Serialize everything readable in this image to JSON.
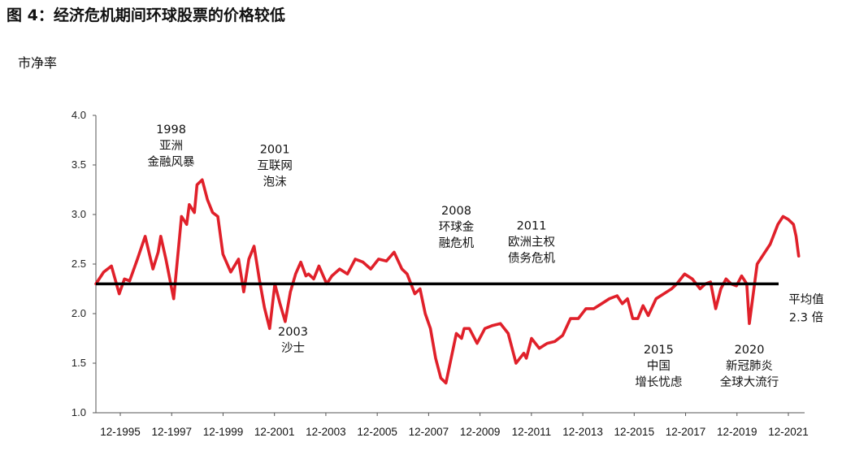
{
  "figure": {
    "title": "图 4：经济危机期间环球股票的价格较低",
    "unit_label": "市净率"
  },
  "colors": {
    "series": "#e0202a",
    "mean_line": "#000000",
    "axis": "#555555",
    "text": "#111111"
  },
  "chart_data": {
    "type": "line",
    "ylim": [
      1.0,
      4.0
    ],
    "yticks": [
      "1.0",
      "1.5",
      "2.0",
      "2.5",
      "3.0",
      "3.5",
      "4.0"
    ],
    "xlim": [
      1995.0,
      2022.33
    ],
    "xtick_labels": [
      "12-1995",
      "12-1997",
      "12-1999",
      "12-2001",
      "12-2003",
      "12-2005",
      "12-2007",
      "12-2009",
      "12-2011",
      "12-2013",
      "12-2015",
      "12-2017",
      "12-2019",
      "12-2021"
    ],
    "grid": false,
    "mean": {
      "value": 2.3,
      "label_lines": [
        "平均值",
        "2.3 倍"
      ]
    },
    "annotations": [
      {
        "lines": [
          "1998",
          "亚洲",
          "金融风暴"
        ],
        "x": 1997.9,
        "y": 3.82
      },
      {
        "lines": [
          "2001",
          "互联网",
          "泡沫"
        ],
        "x": 2001.9,
        "y": 3.62
      },
      {
        "lines": [
          "2003",
          "沙士"
        ],
        "x": 2002.6,
        "y": 1.78
      },
      {
        "lines": [
          "2008",
          "环球金",
          "融危机"
        ],
        "x": 2008.9,
        "y": 3.0
      },
      {
        "lines": [
          "2011",
          "欧洲主权",
          "债务危机"
        ],
        "x": 2011.8,
        "y": 2.85
      },
      {
        "lines": [
          "2015",
          "中国",
          "增长忧虑"
        ],
        "x": 2016.7,
        "y": 1.6
      },
      {
        "lines": [
          "2020",
          "新冠肺炎",
          "全球大流行"
        ],
        "x": 2020.2,
        "y": 1.6
      }
    ],
    "series": [
      {
        "x": [
          1995.0,
          1995.3,
          1995.6,
          1995.9,
          1996.1,
          1996.3,
          1996.6,
          1996.9,
          1997.2,
          1997.4,
          1997.5,
          1997.7,
          1998.0,
          1998.2,
          1998.3,
          1998.5,
          1998.6,
          1998.8,
          1998.9,
          1999.1,
          1999.3,
          1999.5,
          1999.7,
          1999.9,
          2000.2,
          2000.5,
          2000.7,
          2000.9,
          2001.1,
          2001.3,
          2001.5,
          2001.7,
          2001.9,
          2002.1,
          2002.3,
          2002.5,
          2002.7,
          2002.9,
          2003.1,
          2003.2,
          2003.4,
          2003.6,
          2003.9,
          2004.1,
          2004.4,
          2004.7,
          2005.0,
          2005.3,
          2005.6,
          2005.9,
          2006.2,
          2006.5,
          2006.8,
          2007.0,
          2007.3,
          2007.5,
          2007.7,
          2007.9,
          2008.1,
          2008.3,
          2008.5,
          2008.7,
          2008.9,
          2009.1,
          2009.2,
          2009.4,
          2009.7,
          2010.0,
          2010.3,
          2010.6,
          2010.9,
          2011.2,
          2011.5,
          2011.6,
          2011.8,
          2012.1,
          2012.4,
          2012.7,
          2013.0,
          2013.3,
          2013.6,
          2013.9,
          2014.2,
          2014.5,
          2014.8,
          2015.1,
          2015.3,
          2015.5,
          2015.7,
          2015.9,
          2016.1,
          2016.3,
          2016.6,
          2016.9,
          2017.2,
          2017.4,
          2017.7,
          2018.0,
          2018.3,
          2018.5,
          2018.7,
          2018.9,
          2019.1,
          2019.3,
          2019.5,
          2019.7,
          2019.9,
          2020.1,
          2020.2,
          2020.5,
          2020.8,
          2021.0,
          2021.3,
          2021.5,
          2021.7,
          2021.9,
          2022.0,
          2022.1
        ],
        "values": [
          2.3,
          2.42,
          2.48,
          2.2,
          2.35,
          2.33,
          2.55,
          2.78,
          2.45,
          2.62,
          2.78,
          2.55,
          2.15,
          2.7,
          2.98,
          2.9,
          3.1,
          3.02,
          3.3,
          3.35,
          3.15,
          3.02,
          2.98,
          2.6,
          2.42,
          2.55,
          2.22,
          2.55,
          2.68,
          2.35,
          2.06,
          1.85,
          2.3,
          2.1,
          1.92,
          2.22,
          2.4,
          2.52,
          2.38,
          2.4,
          2.35,
          2.48,
          2.3,
          2.38,
          2.45,
          2.4,
          2.55,
          2.52,
          2.45,
          2.55,
          2.53,
          2.62,
          2.45,
          2.4,
          2.2,
          2.25,
          2.0,
          1.85,
          1.55,
          1.35,
          1.3,
          1.55,
          1.8,
          1.75,
          1.85,
          1.85,
          1.7,
          1.85,
          1.88,
          1.9,
          1.8,
          1.5,
          1.6,
          1.55,
          1.75,
          1.65,
          1.7,
          1.72,
          1.78,
          1.95,
          1.95,
          2.05,
          2.05,
          2.1,
          2.15,
          2.18,
          2.1,
          2.15,
          1.95,
          1.95,
          2.08,
          1.98,
          2.15,
          2.2,
          2.25,
          2.3,
          2.4,
          2.35,
          2.25,
          2.3,
          2.32,
          2.05,
          2.25,
          2.35,
          2.3,
          2.28,
          2.38,
          2.3,
          1.9,
          2.5,
          2.62,
          2.7,
          2.9,
          2.98,
          2.95,
          2.9,
          2.78,
          2.58
        ]
      }
    ]
  }
}
